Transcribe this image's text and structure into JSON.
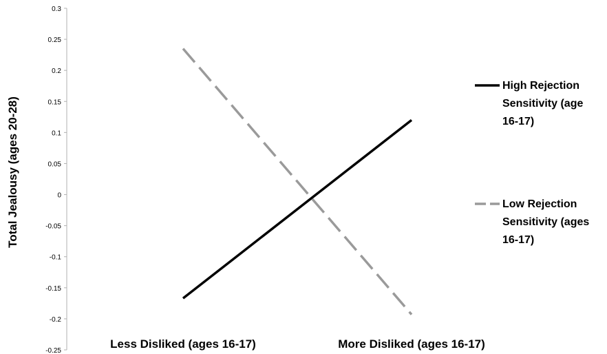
{
  "chart_data": {
    "type": "line",
    "title": "",
    "xlabel": "",
    "ylabel": "Total Jealousy (ages 20-28)",
    "categories": [
      "Less Disliked (ages 16-17)",
      "More Disliked (ages 16-17)"
    ],
    "ylim": [
      -0.25,
      0.3
    ],
    "yticks": [
      "0.3",
      "0.25",
      "0.2",
      "0.15",
      "0.1",
      "0.05",
      "0",
      "-0.05",
      "-0.1",
      "-0.15",
      "-0.2",
      "-0.25"
    ],
    "ytick_values": [
      0.3,
      0.25,
      0.2,
      0.15,
      0.1,
      0.05,
      0,
      -0.05,
      -0.1,
      -0.15,
      -0.2,
      -0.25
    ],
    "grid": false,
    "legend_position": "right",
    "series": [
      {
        "name": "High Rejection Sensitivity (age 16-17)",
        "legend_lines": [
          "High Rejection",
          "Sensitivity (age",
          "16-17)"
        ],
        "values": [
          -0.167,
          0.12
        ],
        "color": "#000000",
        "style": "solid"
      },
      {
        "name": "Low Rejection Sensitivity (ages 16-17)",
        "legend_lines": [
          "Low Rejection",
          "Sensitivity (ages",
          "16-17)"
        ],
        "values": [
          0.235,
          -0.193
        ],
        "color": "#9a9a9a",
        "style": "dashed"
      }
    ]
  }
}
